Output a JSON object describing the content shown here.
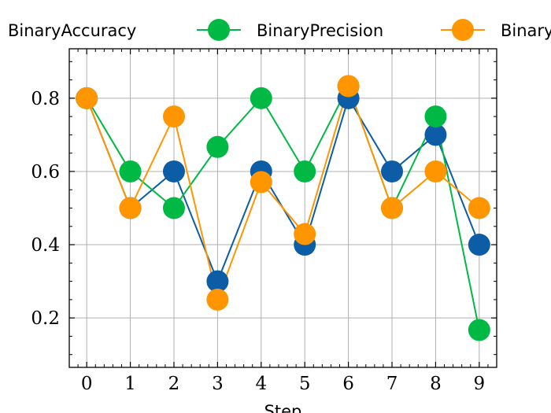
{
  "chart_data": {
    "type": "line",
    "x": [
      0,
      1,
      2,
      3,
      4,
      5,
      6,
      7,
      8,
      9
    ],
    "xlabel": "Step",
    "ylabel": "",
    "xlim": [
      -0.4,
      9.4
    ],
    "ylim": [
      0.065,
      0.935
    ],
    "yticks": [
      "0.2",
      "0.4",
      "0.6",
      "0.8"
    ],
    "ytick_values": [
      0.2,
      0.4,
      0.6,
      0.8
    ],
    "xticks": [
      "0",
      "1",
      "2",
      "3",
      "4",
      "5",
      "6",
      "7",
      "8",
      "9"
    ],
    "grid": true,
    "legend_position": "top",
    "series": [
      {
        "name": "BinaryAccuracy",
        "color": "#0C5DA5",
        "values": [
          0.8,
          0.5,
          0.6,
          0.3,
          0.6,
          0.4,
          0.8,
          0.6,
          0.7,
          0.4
        ]
      },
      {
        "name": "BinaryPrecision",
        "color": "#00B945",
        "values": [
          0.8,
          0.6,
          0.5,
          0.667,
          0.8,
          0.6,
          0.833,
          0.5,
          0.75,
          0.167
        ]
      },
      {
        "name": "BinaryRecall",
        "color": "#FF9500",
        "values": [
          0.8,
          0.5,
          0.75,
          0.25,
          0.571,
          0.429,
          0.833,
          0.5,
          0.6,
          0.5
        ]
      }
    ]
  }
}
